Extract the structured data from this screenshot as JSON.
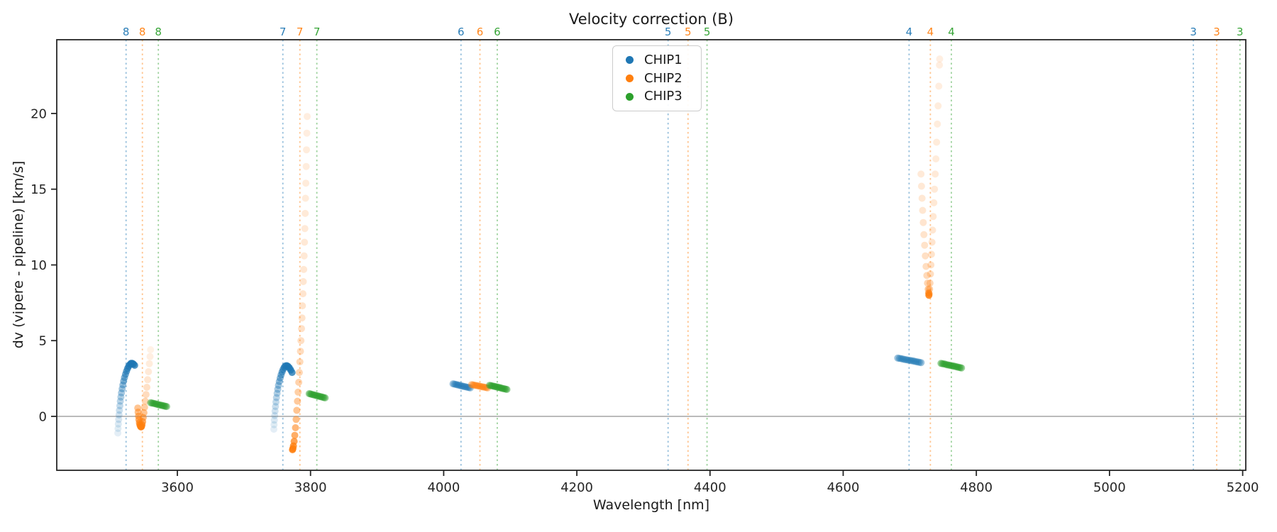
{
  "colors": {
    "chip1": "#1f77b4",
    "chip2": "#ff7f0e",
    "chip3": "#2ca02c",
    "spine": "#262626",
    "zero_line": "#808080",
    "legend_border": "#cccccc",
    "background": "#ffffff"
  },
  "chart_data": {
    "type": "scatter",
    "title": "Velocity correction (B)",
    "xlabel": "Wavelength [nm]",
    "ylabel": "dv (vipere - pipeline) [km/s]",
    "xlim": [
      3418.9,
      5204.7
    ],
    "ylim": [
      -3.56,
      24.87
    ],
    "xticks": [
      3600,
      3800,
      4000,
      4200,
      4400,
      4600,
      4800,
      5000,
      5200
    ],
    "yticks": [
      0,
      5,
      10,
      15,
      20
    ],
    "grid": false,
    "zero_line": {
      "y": 0,
      "color": "#808080"
    },
    "legend": {
      "position": "upper center",
      "entries": [
        {
          "label": "CHIP1",
          "color": "#1f77b4"
        },
        {
          "label": "CHIP2",
          "color": "#ff7f0e"
        },
        {
          "label": "CHIP3",
          "color": "#2ca02c"
        }
      ]
    },
    "orders": [
      {
        "label": "8",
        "lines": [
          {
            "chip": "CHIP1",
            "x": 3523.0
          },
          {
            "chip": "CHIP2",
            "x": 3547.5
          },
          {
            "chip": "CHIP3",
            "x": 3571.5
          }
        ]
      },
      {
        "label": "7",
        "lines": [
          {
            "chip": "CHIP1",
            "x": 3758.5
          },
          {
            "chip": "CHIP2",
            "x": 3784.0
          },
          {
            "chip": "CHIP3",
            "x": 3809.5
          }
        ]
      },
      {
        "label": "6",
        "lines": [
          {
            "chip": "CHIP1",
            "x": 4026.0
          },
          {
            "chip": "CHIP2",
            "x": 4054.5
          },
          {
            "chip": "CHIP3",
            "x": 4080.5
          }
        ]
      },
      {
        "label": "5",
        "lines": [
          {
            "chip": "CHIP1",
            "x": 4337.0
          },
          {
            "chip": "CHIP2",
            "x": 4367.0
          },
          {
            "chip": "CHIP3",
            "x": 4395.5
          }
        ]
      },
      {
        "label": "4",
        "lines": [
          {
            "chip": "CHIP1",
            "x": 4699.0
          },
          {
            "chip": "CHIP2",
            "x": 4731.0
          },
          {
            "chip": "CHIP3",
            "x": 4762.5
          }
        ]
      },
      {
        "label": "3",
        "lines": [
          {
            "chip": "CHIP1",
            "x": 5126.0
          },
          {
            "chip": "CHIP2",
            "x": 5161.0
          },
          {
            "chip": "CHIP3",
            "x": 5196.0
          }
        ]
      }
    ],
    "series": [
      {
        "name": "CHIP1",
        "color": "#1f77b4",
        "clusters": [
          {
            "order": 8,
            "x": [
              3510.6,
              3511.0,
              3511.4,
              3511.9,
              3512.4,
              3513.0,
              3513.7,
              3514.4,
              3515.2,
              3516.1,
              3517.1,
              3518.2,
              3519.4,
              3520.7,
              3522.1,
              3523.6,
              3525.2,
              3526.9,
              3528.7,
              3530.5,
              3532.3,
              3534.1,
              3535.9
            ],
            "y": [
              -1.1,
              -0.8,
              -0.5,
              -0.2,
              0.1,
              0.4,
              0.7,
              1.0,
              1.28,
              1.55,
              1.82,
              2.08,
              2.33,
              2.56,
              2.78,
              2.98,
              3.16,
              3.31,
              3.42,
              3.5,
              3.5,
              3.45,
              3.37
            ],
            "alphas": [
              0.12,
              0.14,
              0.16,
              0.18,
              0.21,
              0.24,
              0.27,
              0.31,
              0.35,
              0.39,
              0.43,
              0.47,
              0.52,
              0.57,
              0.62,
              0.67,
              0.72,
              0.77,
              0.82,
              0.85,
              0.85,
              0.82,
              0.78
            ]
          },
          {
            "order": 7,
            "x": [
              3744.9,
              3745.3,
              3745.7,
              3746.2,
              3746.8,
              3747.4,
              3748.1,
              3748.9,
              3749.8,
              3750.8,
              3751.9,
              3753.1,
              3754.4,
              3755.8,
              3757.3,
              3758.9,
              3760.6,
              3762.4,
              3764.3,
              3766.3,
              3768.3,
              3770.3,
              3772.3
            ],
            "y": [
              -0.85,
              -0.55,
              -0.25,
              0.05,
              0.35,
              0.65,
              0.95,
              1.24,
              1.52,
              1.79,
              2.05,
              2.3,
              2.53,
              2.74,
              2.93,
              3.1,
              3.24,
              3.33,
              3.35,
              3.3,
              3.2,
              3.06,
              2.9
            ],
            "alphas": [
              0.12,
              0.14,
              0.16,
              0.18,
              0.21,
              0.24,
              0.27,
              0.31,
              0.35,
              0.39,
              0.43,
              0.47,
              0.52,
              0.57,
              0.62,
              0.67,
              0.72,
              0.77,
              0.82,
              0.85,
              0.85,
              0.82,
              0.78
            ]
          },
          {
            "order": 6,
            "x": [
              4014,
              4016,
              4018,
              4020,
              4022,
              4024,
              4026,
              4028,
              4030,
              4032,
              4034,
              4036,
              4038,
              4040
            ],
            "y": [
              2.15,
              2.13,
              2.11,
              2.09,
              2.07,
              2.05,
              2.02,
              2.0,
              1.98,
              1.96,
              1.94,
              1.92,
              1.9,
              1.88
            ],
            "alpha": 0.42
          },
          {
            "order": 4,
            "x": [
              4682,
              4684.5,
              4687,
              4689.5,
              4692,
              4694.5,
              4697,
              4699.5,
              4702,
              4704.5,
              4707,
              4709.5,
              4712,
              4714.5,
              4717
            ],
            "y": [
              3.85,
              3.83,
              3.81,
              3.79,
              3.76,
              3.74,
              3.72,
              3.7,
              3.68,
              3.66,
              3.64,
              3.61,
              3.59,
              3.57,
              3.55
            ],
            "alpha": 0.45
          }
        ]
      },
      {
        "name": "CHIP2",
        "color": "#ff7f0e",
        "clusters": [
          {
            "order": 8,
            "x": [
              3540.6,
              3541.1,
              3541.7,
              3542.3,
              3543.0,
              3543.8,
              3544.6,
              3545.4,
              3546.2,
              3547.0,
              3547.9,
              3548.8,
              3549.8,
              3550.8,
              3551.9,
              3553.0,
              3554.2,
              3555.4,
              3556.7,
              3558.0,
              3559.0,
              3559.8
            ],
            "y": [
              0.55,
              0.28,
              0.02,
              -0.22,
              -0.42,
              -0.56,
              -0.65,
              -0.7,
              -0.67,
              -0.55,
              -0.35,
              -0.08,
              0.24,
              0.6,
              1.0,
              1.44,
              1.92,
              2.42,
              2.95,
              3.48,
              3.95,
              4.4
            ],
            "alphas": [
              0.45,
              0.5,
              0.55,
              0.62,
              0.68,
              0.75,
              0.8,
              0.85,
              0.8,
              0.72,
              0.62,
              0.53,
              0.45,
              0.38,
              0.32,
              0.27,
              0.23,
              0.19,
              0.16,
              0.14,
              0.12,
              0.1
            ]
          },
          {
            "order": 7,
            "x": [
              3795.0,
              3794.5,
              3794.0,
              3793.5,
              3793.0,
              3792.5,
              3792.0,
              3791.5,
              3791.0,
              3790.4,
              3789.8,
              3789.2,
              3788.6,
              3787.9,
              3787.2,
              3786.5,
              3785.7,
              3784.9,
              3784.1,
              3783.2,
              3782.3,
              3781.4,
              3780.4,
              3779.4,
              3778.4,
              3777.4,
              3776.4,
              3775.4,
              3774.4,
              3773.6,
              3773.0
            ],
            "y": [
              19.8,
              18.7,
              17.6,
              16.5,
              15.4,
              14.4,
              13.4,
              12.4,
              11.5,
              10.6,
              9.7,
              8.9,
              8.1,
              7.3,
              6.5,
              5.8,
              5.0,
              4.3,
              3.6,
              2.9,
              2.25,
              1.6,
              1.0,
              0.4,
              -0.2,
              -0.75,
              -1.25,
              -1.65,
              -1.95,
              -2.12,
              -2.2
            ],
            "alphas": [
              0.13,
              0.13,
              0.14,
              0.14,
              0.15,
              0.15,
              0.16,
              0.16,
              0.17,
              0.17,
              0.18,
              0.19,
              0.2,
              0.21,
              0.22,
              0.23,
              0.25,
              0.27,
              0.29,
              0.31,
              0.34,
              0.37,
              0.41,
              0.45,
              0.5,
              0.56,
              0.63,
              0.71,
              0.79,
              0.85,
              0.85
            ]
          },
          {
            "order": 6,
            "x": [
              4042,
              4044,
              4046,
              4048,
              4050,
              4052,
              4054,
              4056,
              4058,
              4060,
              4062,
              4064,
              4066
            ],
            "y": [
              2.1,
              2.08,
              2.06,
              2.04,
              2.03,
              2.01,
              1.99,
              1.97,
              1.95,
              1.94,
              1.92,
              1.9,
              1.88
            ],
            "alpha": 0.42
          },
          {
            "order": 4,
            "x": [
              4716.9,
              4717.7,
              4718.5,
              4719.4,
              4720.3,
              4721.3,
              4722.3,
              4723.4,
              4724.5,
              4725.6,
              4726.7,
              4727.7,
              4728.3,
              4728.7,
              4729.2,
              4729.8,
              4730.4,
              4731.1,
              4731.8,
              4732.6,
              4733.4,
              4734.3,
              4735.2,
              4736.2,
              4737.2,
              4738.2,
              4739.3,
              4740.4,
              4741.5,
              4742.6,
              4743.7,
              4744.6,
              4744.9
            ],
            "y": [
              16.0,
              15.2,
              14.4,
              13.6,
              12.8,
              12.0,
              11.3,
              10.6,
              9.9,
              9.3,
              8.8,
              8.4,
              8.15,
              8.0,
              8.1,
              8.4,
              8.8,
              9.4,
              10.0,
              10.7,
              11.5,
              12.3,
              13.2,
              14.1,
              15.0,
              16.0,
              17.0,
              18.1,
              19.3,
              20.5,
              21.8,
              23.2,
              23.6
            ],
            "alphas": [
              0.16,
              0.17,
              0.18,
              0.19,
              0.2,
              0.21,
              0.22,
              0.24,
              0.26,
              0.29,
              0.33,
              0.42,
              0.6,
              0.85,
              0.55,
              0.38,
              0.3,
              0.26,
              0.23,
              0.21,
              0.2,
              0.19,
              0.18,
              0.17,
              0.16,
              0.16,
              0.15,
              0.15,
              0.14,
              0.14,
              0.13,
              0.13,
              0.12
            ]
          }
        ]
      },
      {
        "name": "CHIP3",
        "color": "#2ca02c",
        "clusters": [
          {
            "order": 8,
            "x": [
              3560,
              3562,
              3564,
              3566,
              3568,
              3570,
              3572,
              3574,
              3576,
              3578,
              3580,
              3582,
              3584
            ],
            "y": [
              0.9,
              0.88,
              0.86,
              0.84,
              0.82,
              0.79,
              0.77,
              0.75,
              0.73,
              0.71,
              0.69,
              0.67,
              0.65
            ],
            "alpha": 0.5
          },
          {
            "order": 7,
            "x": [
              3798,
              3800,
              3802,
              3804,
              3806,
              3808,
              3810,
              3812,
              3814,
              3816,
              3818,
              3820,
              3822
            ],
            "y": [
              1.5,
              1.48,
              1.45,
              1.43,
              1.41,
              1.38,
              1.36,
              1.34,
              1.31,
              1.29,
              1.27,
              1.24,
              1.22
            ],
            "alpha": 0.5
          },
          {
            "order": 6,
            "x": [
              4069,
              4071,
              4073,
              4075,
              4077,
              4079,
              4081,
              4083,
              4085,
              4087,
              4089,
              4091,
              4093,
              4095
            ],
            "y": [
              2.05,
              2.03,
              2.01,
              1.99,
              1.97,
              1.95,
              1.93,
              1.91,
              1.89,
              1.86,
              1.84,
              1.82,
              1.8,
              1.78
            ],
            "alpha": 0.5
          },
          {
            "order": 4,
            "x": [
              4747,
              4749.2,
              4751.4,
              4753.6,
              4755.8,
              4758,
              4760.2,
              4762.4,
              4764.6,
              4766.8,
              4769,
              4771.2,
              4773.4,
              4775.6,
              4777.8
            ],
            "y": [
              3.5,
              3.48,
              3.46,
              3.44,
              3.41,
              3.39,
              3.37,
              3.35,
              3.33,
              3.31,
              3.29,
              3.26,
              3.24,
              3.22,
              3.2
            ],
            "alpha": 0.5
          }
        ]
      }
    ]
  }
}
